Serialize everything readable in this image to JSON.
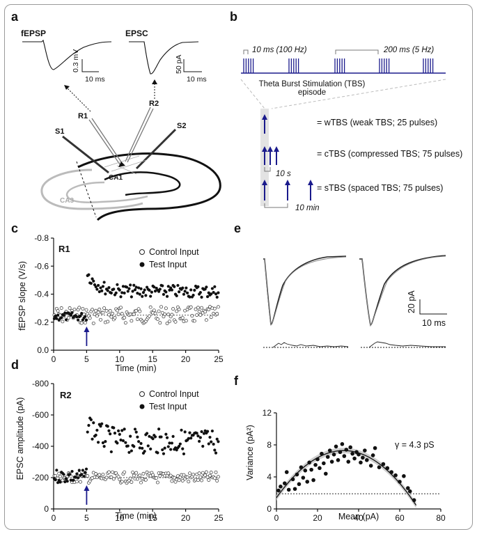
{
  "panels": {
    "a": {
      "label": "a",
      "trace_titles": [
        "fEPSP",
        "EPSC"
      ],
      "fepsp_scalebar": {
        "y": "0.3 mV",
        "x": "10 ms"
      },
      "epsc_scalebar": {
        "y": "50 pA",
        "x": "10 ms"
      },
      "electrodes": [
        "R1",
        "R2",
        "S1",
        "S2"
      ],
      "regions": [
        "CA1",
        "CA3"
      ]
    },
    "b": {
      "label": "b",
      "burst_interval": "10 ms (100 Hz)",
      "train_interval": "200 ms (5 Hz)",
      "tbs_title": "Theta Burst Stimulation (TBS)",
      "tbs_sub": "episode",
      "protocols": [
        "= wTBS (weak TBS; 25 pulses)",
        "= cTBS (compressed TBS; 75 pulses)",
        "= sTBS (spaced TBS; 75 pulses)"
      ],
      "c_interval": "10 s",
      "s_interval": "10 min"
    },
    "c": {
      "label": "c"
    },
    "d": {
      "label": "d"
    },
    "e": {
      "label": "e",
      "scalebar": {
        "y": "20 pA",
        "x": "10 ms"
      }
    },
    "f": {
      "label": "f",
      "gamma": "γ = 4.3 pS"
    }
  },
  "chart_data": [
    {
      "id": "c",
      "type": "scatter",
      "title": "R1",
      "xlabel": "Time (min)",
      "ylabel": "fEPSP slope (V/s)",
      "xlim": [
        0,
        25
      ],
      "ylim": [
        0,
        -0.8
      ],
      "xticks": [
        "0",
        "5",
        "10",
        "15",
        "20",
        "25"
      ],
      "yticks": [
        "0.0",
        "-0.2",
        "-0.4",
        "-0.6",
        "-0.8"
      ],
      "legend": [
        "Control Input",
        "Test Input"
      ],
      "stimulus_time": 5,
      "control_baseline": -0.25,
      "test_baseline": -0.24,
      "test_peak": -0.56,
      "test_plateau": -0.42
    },
    {
      "id": "d",
      "type": "scatter",
      "title": "R2",
      "xlabel": "Time (min)",
      "ylabel": "EPSC amplitude (pA)",
      "xlim": [
        0,
        25
      ],
      "ylim": [
        0,
        -800
      ],
      "xticks": [
        "0",
        "5",
        "10",
        "15",
        "20",
        "25"
      ],
      "yticks": [
        "0",
        "-200",
        "-400",
        "-600",
        "-800"
      ],
      "legend": [
        "Control Input",
        "Test Input"
      ],
      "stimulus_time": 5,
      "control_baseline": -200,
      "test_baseline": -210,
      "test_peak": -580,
      "test_plateau": -430
    },
    {
      "id": "f",
      "type": "scatter",
      "xlabel": "Mean (pA)",
      "ylabel": "Variance (pA²)",
      "xlim": [
        0,
        80
      ],
      "ylim": [
        0,
        12
      ],
      "xticks": [
        "0",
        "20",
        "40",
        "60",
        "80"
      ],
      "yticks": [
        "0",
        "4",
        "8",
        "12"
      ],
      "fit_parabola": {
        "a": -0.0055,
        "b": 0.36,
        "c": 1.4
      },
      "baseline_variance": 1.9,
      "points": [
        [
          1,
          2.3
        ],
        [
          2,
          2.8
        ],
        [
          4,
          3.2
        ],
        [
          5,
          4.6
        ],
        [
          6,
          2.4
        ],
        [
          8,
          3.7
        ],
        [
          9,
          2.5
        ],
        [
          10,
          4.3
        ],
        [
          11,
          3.1
        ],
        [
          12,
          5.2
        ],
        [
          13,
          3.9
        ],
        [
          14,
          4.8
        ],
        [
          15,
          3.4
        ],
        [
          16,
          5.8
        ],
        [
          17,
          4.9
        ],
        [
          18,
          3.6
        ],
        [
          19,
          5.5
        ],
        [
          20,
          6.2
        ],
        [
          21,
          5.1
        ],
        [
          22,
          6.9
        ],
        [
          23,
          5.7
        ],
        [
          24,
          4.4
        ],
        [
          25,
          6.5
        ],
        [
          26,
          7.3
        ],
        [
          27,
          5.9
        ],
        [
          28,
          6.8
        ],
        [
          29,
          7.8
        ],
        [
          30,
          6.1
        ],
        [
          31,
          7.1
        ],
        [
          32,
          8.1
        ],
        [
          33,
          6.6
        ],
        [
          34,
          7.4
        ],
        [
          35,
          5.9
        ],
        [
          36,
          7.7
        ],
        [
          37,
          6.9
        ],
        [
          38,
          6.3
        ],
        [
          39,
          7.1
        ],
        [
          40,
          6.8
        ],
        [
          41,
          5.8
        ],
        [
          42,
          6.4
        ],
        [
          43,
          7.3
        ],
        [
          44,
          6.1
        ],
        [
          46,
          5.4
        ],
        [
          47,
          6.7
        ],
        [
          48,
          7.6
        ],
        [
          50,
          5.2
        ],
        [
          52,
          5.6
        ],
        [
          54,
          5.1
        ],
        [
          56,
          4.6
        ],
        [
          58,
          4.2
        ],
        [
          60,
          3.4
        ],
        [
          62,
          4.1
        ],
        [
          64,
          2.6
        ],
        [
          65,
          2.2
        ],
        [
          67,
          1.1
        ]
      ]
    }
  ]
}
